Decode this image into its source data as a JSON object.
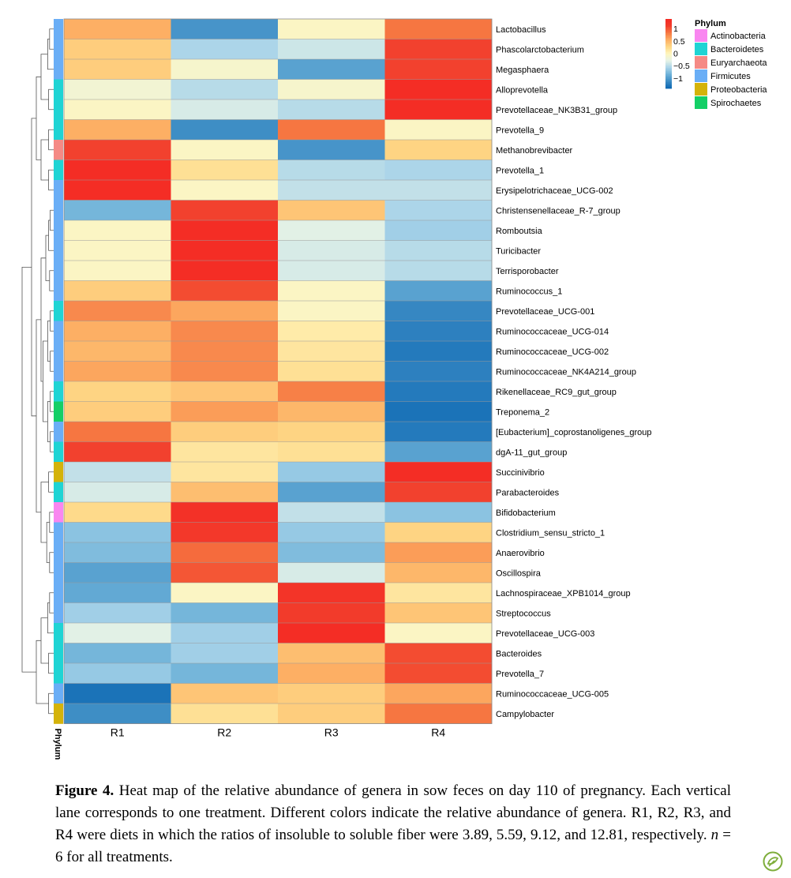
{
  "chart_data": {
    "type": "heatmap",
    "columns": [
      "R1",
      "R2",
      "R3",
      "R4"
    ],
    "rows": [
      {
        "label": "Lactobacillus",
        "phylum": "Firmicutes",
        "values": [
          0.55,
          -1.05,
          -0.05,
          0.85
        ]
      },
      {
        "label": "Phascolarctobacterium",
        "phylum": "Firmicutes",
        "values": [
          0.35,
          -0.55,
          -0.4,
          1.1
        ]
      },
      {
        "label": "Megasphaera",
        "phylum": "Firmicutes",
        "values": [
          0.35,
          -0.1,
          -0.95,
          1.1
        ]
      },
      {
        "label": "Alloprevotella",
        "phylum": "Bacteroidetes",
        "values": [
          -0.15,
          -0.5,
          -0.1,
          1.35
        ]
      },
      {
        "label": "Prevotellaceae_NK3B31_group",
        "phylum": "Bacteroidetes",
        "values": [
          -0.05,
          -0.35,
          -0.5,
          1.35
        ]
      },
      {
        "label": "Prevotella_9",
        "phylum": "Bacteroidetes",
        "values": [
          0.55,
          -1.1,
          0.85,
          -0.05
        ]
      },
      {
        "label": "Methanobrevibacter",
        "phylum": "Euryarchaeota",
        "values": [
          1.1,
          -0.05,
          -1.05,
          0.3
        ]
      },
      {
        "label": "Prevotella_1",
        "phylum": "Bacteroidetes",
        "values": [
          1.35,
          0.2,
          -0.5,
          -0.55
        ]
      },
      {
        "label": "Erysipelotrichaceae_UCG-002",
        "phylum": "Firmicutes",
        "values": [
          1.35,
          -0.05,
          -0.45,
          -0.45
        ]
      },
      {
        "label": "Christensenellaceae_R-7_group",
        "phylum": "Firmicutes",
        "values": [
          -0.8,
          1.1,
          0.4,
          -0.55
        ]
      },
      {
        "label": "Romboutsia",
        "phylum": "Firmicutes",
        "values": [
          -0.05,
          1.35,
          -0.3,
          -0.6
        ]
      },
      {
        "label": "Turicibacter",
        "phylum": "Firmicutes",
        "values": [
          -0.05,
          1.35,
          -0.35,
          -0.5
        ]
      },
      {
        "label": "Terrisporobacter",
        "phylum": "Firmicutes",
        "values": [
          -0.05,
          1.35,
          -0.35,
          -0.5
        ]
      },
      {
        "label": "Ruminococcus_1",
        "phylum": "Firmicutes",
        "values": [
          0.35,
          1.05,
          -0.05,
          -0.95
        ]
      },
      {
        "label": "Prevotellaceae_UCG-001",
        "phylum": "Bacteroidetes",
        "values": [
          0.75,
          0.6,
          -0.05,
          -1.15
        ]
      },
      {
        "label": "Ruminococcaceae_UCG-014",
        "phylum": "Firmicutes",
        "values": [
          0.55,
          0.75,
          0.1,
          -1.2
        ]
      },
      {
        "label": "Ruminococcaceae_UCG-002",
        "phylum": "Firmicutes",
        "values": [
          0.5,
          0.75,
          0.15,
          -1.25
        ]
      },
      {
        "label": "Ruminococcaceae_NK4A214_group",
        "phylum": "Firmicutes",
        "values": [
          0.6,
          0.75,
          0.2,
          -1.2
        ]
      },
      {
        "label": "Rikenellaceae_RC9_gut_group",
        "phylum": "Bacteroidetes",
        "values": [
          0.3,
          0.4,
          0.8,
          -1.25
        ]
      },
      {
        "label": "Treponema_2",
        "phylum": "Spirochaetes",
        "values": [
          0.35,
          0.65,
          0.5,
          -1.3
        ]
      },
      {
        "label": "[Eubacterium]_coprostanoligenes_group",
        "phylum": "Firmicutes",
        "values": [
          0.85,
          0.35,
          0.3,
          -1.25
        ]
      },
      {
        "label": "dgA-11_gut_group",
        "phylum": "Bacteroidetes",
        "values": [
          1.1,
          0.15,
          0.2,
          -0.95
        ]
      },
      {
        "label": "Succinivibrio",
        "phylum": "Proteobacteria",
        "values": [
          -0.45,
          0.15,
          -0.65,
          1.35
        ]
      },
      {
        "label": "Parabacteroides",
        "phylum": "Bacteroidetes",
        "values": [
          -0.35,
          0.45,
          -0.95,
          1.1
        ]
      },
      {
        "label": "Bifidobacterium",
        "phylum": "Actinobacteria",
        "values": [
          0.25,
          1.3,
          -0.45,
          -0.7
        ]
      },
      {
        "label": "Clostridium_sensu_stricto_1",
        "phylum": "Firmicutes",
        "values": [
          -0.7,
          1.2,
          -0.65,
          0.3
        ]
      },
      {
        "label": "Anaerovibrio",
        "phylum": "Firmicutes",
        "values": [
          -0.75,
          0.9,
          -0.75,
          0.65
        ]
      },
      {
        "label": "Oscillospira",
        "phylum": "Firmicutes",
        "values": [
          -0.95,
          1.0,
          -0.35,
          0.5
        ]
      },
      {
        "label": "Lachnospiraceae_XPB1014_group",
        "phylum": "Firmicutes",
        "values": [
          -0.9,
          -0.05,
          1.25,
          0.15
        ]
      },
      {
        "label": "Streptococcus",
        "phylum": "Firmicutes",
        "values": [
          -0.6,
          -0.8,
          1.15,
          0.4
        ]
      },
      {
        "label": "Prevotellaceae_UCG-003",
        "phylum": "Bacteroidetes",
        "values": [
          -0.3,
          -0.6,
          1.35,
          -0.05
        ]
      },
      {
        "label": "Bacteroides",
        "phylum": "Bacteroidetes",
        "values": [
          -0.8,
          -0.6,
          0.45,
          1.05
        ]
      },
      {
        "label": "Prevotella_7",
        "phylum": "Bacteroidetes",
        "values": [
          -0.65,
          -0.8,
          0.55,
          1.05
        ]
      },
      {
        "label": "Ruminococcaceae_UCG-005",
        "phylum": "Firmicutes",
        "values": [
          -1.3,
          0.4,
          0.35,
          0.6
        ]
      },
      {
        "label": "Campylobacter",
        "phylum": "Proteobacteria",
        "values": [
          -1.1,
          0.2,
          0.35,
          0.85
        ]
      }
    ],
    "colorbar": {
      "ticks": [
        1,
        0.5,
        0,
        -0.5,
        -1
      ],
      "tick_labels": [
        "1",
        "0.5",
        "0",
        "−0.5",
        "−1"
      ],
      "range": [
        -1.4,
        1.4
      ]
    },
    "colors": {
      "scale": [
        "#0a66b2",
        "#3b8bc4",
        "#6cb1d8",
        "#aad4e9",
        "#e6f3e6",
        "#fff6bd",
        "#fed785",
        "#fdae63",
        "#f67842",
        "#f23d2c",
        "#f42a24"
      ]
    },
    "phylum_title": "Phylum",
    "phylum_axis_label": "Phylum",
    "phyla": [
      {
        "name": "Actinobacteria",
        "color": "#f986f0"
      },
      {
        "name": "Bacteroidetes",
        "color": "#1fd4d4"
      },
      {
        "name": "Euryarchaeota",
        "color": "#f58a85"
      },
      {
        "name": "Firmicutes",
        "color": "#6aaef6"
      },
      {
        "name": "Proteobacteria",
        "color": "#d4b30a"
      },
      {
        "name": "Spirochaetes",
        "color": "#14cf66"
      }
    ]
  },
  "caption": {
    "label": "Figure 4.",
    "text_a": " Heat map of the relative abundance of genera in sow feces on day 110 of pregnancy. Each vertical lane corresponds to one treatment. Different colors indicate the relative abundance of genera. R1, R2, R3, and R4 were diets in which the ratios of insoluble to soluble fiber were 3.89, 5.59, 9.12, and 12.81, respectively. ",
    "n_symbol": "n",
    "text_b": " = 6 for all treatments."
  }
}
